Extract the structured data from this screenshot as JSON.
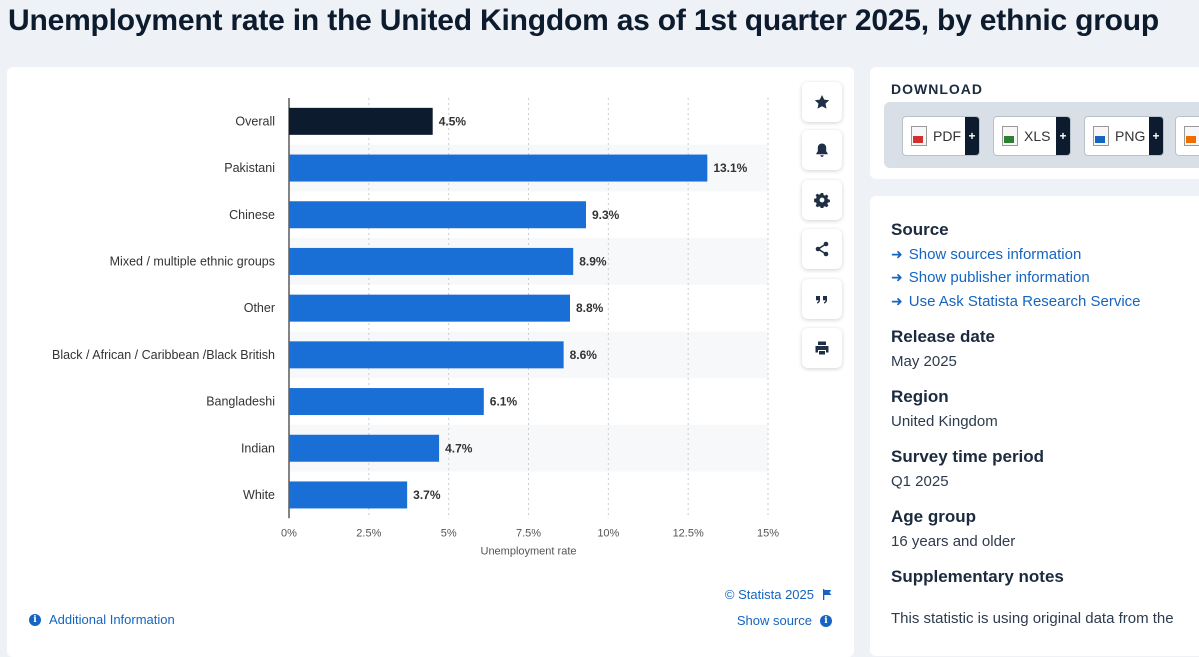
{
  "title": "Unemployment rate in the United Kingdom as of 1st quarter 2025, by ethnic group",
  "chart_data": {
    "type": "bar",
    "orientation": "horizontal",
    "categories": [
      "Overall",
      "Pakistani",
      "Chinese",
      "Mixed / multiple ethnic groups",
      "Other",
      "Black / African / Caribbean /Black British",
      "Bangladeshi",
      "Indian",
      "White"
    ],
    "values": [
      4.5,
      13.1,
      9.3,
      8.9,
      8.8,
      8.6,
      6.1,
      4.7,
      3.7
    ],
    "value_labels": [
      "4.5%",
      "13.1%",
      "9.3%",
      "8.9%",
      "8.8%",
      "8.6%",
      "6.1%",
      "4.7%",
      "3.7%"
    ],
    "bar_colors": [
      "#0d1b2e",
      "#1a6fd6",
      "#1a6fd6",
      "#1a6fd6",
      "#1a6fd6",
      "#1a6fd6",
      "#1a6fd6",
      "#1a6fd6",
      "#1a6fd6"
    ],
    "xlabel": "Unemployment rate",
    "xlim": [
      0,
      15
    ],
    "ticks": [
      0,
      2.5,
      5,
      7.5,
      10,
      12.5,
      15
    ],
    "tick_labels": [
      "0%",
      "2.5%",
      "5%",
      "7.5%",
      "10%",
      "12.5%",
      "15%"
    ],
    "grid": "vertical dashed"
  },
  "chart_footer": {
    "copyright": "© Statista 2025",
    "additional_info": "Additional Information",
    "show_source": "Show source"
  },
  "side_toolbar": [
    "star-icon",
    "bell-icon",
    "gear-icon",
    "share-icon",
    "quote-icon",
    "print-icon"
  ],
  "download": {
    "title": "DOWNLOAD",
    "buttons": [
      {
        "label": "PDF",
        "plus": "+",
        "color": "#d32f2f"
      },
      {
        "label": "XLS",
        "plus": "+",
        "color": "#2e7d32"
      },
      {
        "label": "PNG",
        "plus": "+",
        "color": "#1565c0"
      },
      {
        "label": "",
        "plus": "",
        "color": "#ef6c00"
      }
    ]
  },
  "info": {
    "source_heading": "Source",
    "links": [
      "Show sources information",
      "Show publisher information",
      "Use Ask Statista Research Service"
    ],
    "release_heading": "Release date",
    "release_value": "May 2025",
    "region_heading": "Region",
    "region_value": "United Kingdom",
    "survey_heading": "Survey time period",
    "survey_value": "Q1 2025",
    "age_heading": "Age group",
    "age_value": "16 years and older",
    "notes_heading": "Supplementary notes",
    "notes_value": "This statistic is using original data from the"
  }
}
